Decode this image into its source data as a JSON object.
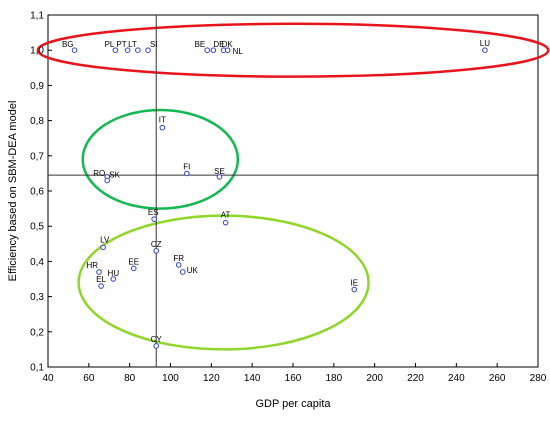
{
  "chart_data": {
    "type": "scatter",
    "title": "",
    "xlabel": "GDP per capita",
    "ylabel": "Efficiency based on SBM-DEA model",
    "xlim": [
      40,
      280
    ],
    "ylim": [
      0.1,
      1.1
    ],
    "xticks": [
      "40",
      "60",
      "80",
      "100",
      "120",
      "140",
      "160",
      "180",
      "200",
      "220",
      "240",
      "260",
      "280"
    ],
    "yticks": [
      "0,1",
      "0,2",
      "0,3",
      "0,4",
      "0,5",
      "0,6",
      "0,7",
      "0,8",
      "0,9",
      "1,0",
      "1,1"
    ],
    "grid": false,
    "reference_lines": {
      "x": 93,
      "y": 0.645
    },
    "points": [
      {
        "label": "BG",
        "x": 53,
        "y": 1.0
      },
      {
        "label": "PL",
        "x": 73,
        "y": 1.0
      },
      {
        "label": "PT",
        "x": 79,
        "y": 1.0
      },
      {
        "label": "LT",
        "x": 84,
        "y": 1.0
      },
      {
        "label": "SI",
        "x": 89,
        "y": 1.0
      },
      {
        "label": "BE",
        "x": 118,
        "y": 1.0
      },
      {
        "label": "DE",
        "x": 121,
        "y": 1.0
      },
      {
        "label": "DK",
        "x": 126,
        "y": 1.0
      },
      {
        "label": "NL",
        "x": 128,
        "y": 1.0
      },
      {
        "label": "LU",
        "x": 254,
        "y": 1.0
      },
      {
        "label": "IT",
        "x": 96,
        "y": 0.78
      },
      {
        "label": "RO",
        "x": 69,
        "y": 0.64
      },
      {
        "label": "SK",
        "x": 69,
        "y": 0.63
      },
      {
        "label": "FI",
        "x": 108,
        "y": 0.65
      },
      {
        "label": "SE",
        "x": 124,
        "y": 0.64
      },
      {
        "label": "ES",
        "x": 92,
        "y": 0.52
      },
      {
        "label": "AT",
        "x": 127,
        "y": 0.51
      },
      {
        "label": "LV",
        "x": 67,
        "y": 0.44
      },
      {
        "label": "CZ",
        "x": 93,
        "y": 0.43
      },
      {
        "label": "HR",
        "x": 65,
        "y": 0.37
      },
      {
        "label": "EE",
        "x": 82,
        "y": 0.38
      },
      {
        "label": "FR",
        "x": 104,
        "y": 0.39
      },
      {
        "label": "UK",
        "x": 106,
        "y": 0.37
      },
      {
        "label": "HU",
        "x": 72,
        "y": 0.35
      },
      {
        "label": "EL",
        "x": 66,
        "y": 0.33
      },
      {
        "label": "IE",
        "x": 190,
        "y": 0.32
      },
      {
        "label": "CY",
        "x": 93,
        "y": 0.16
      }
    ],
    "ellipses": [
      {
        "cx": 160,
        "cy": 1.0,
        "rx": 125,
        "ry": 0.075,
        "color": "#e8141c"
      },
      {
        "cx": 95,
        "cy": 0.69,
        "rx": 38,
        "ry": 0.14,
        "color": "#14b850"
      },
      {
        "cx": 126,
        "cy": 0.34,
        "rx": 71,
        "ry": 0.19,
        "color": "#8fd628"
      }
    ],
    "colors": {
      "point": "#3040c8",
      "axis": "#000000",
      "reference": "#333333"
    }
  }
}
